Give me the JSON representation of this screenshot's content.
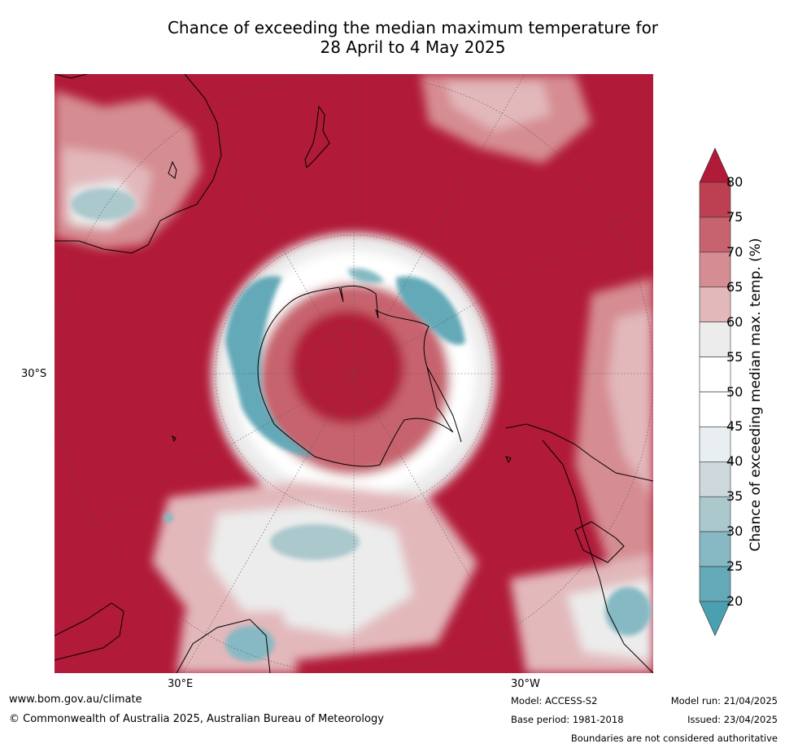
{
  "title": {
    "line1": "Chance of exceeding the median maximum temperature for",
    "line2": "28 April to 4 May 2025"
  },
  "axis_labels": {
    "left": "30°S",
    "bottom_left": "30°E",
    "bottom_right": "30°W"
  },
  "colorbar": {
    "title": "Chance of exceeding median max. temp. (%)",
    "ticks": [
      "80",
      "75",
      "70",
      "65",
      "60",
      "55",
      "50",
      "45",
      "40",
      "35",
      "30",
      "25",
      "20"
    ],
    "colors": {
      "above_80": "#b11a38",
      "75_80": "#bd3f52",
      "70_75": "#c7636e",
      "65_70": "#d58c92",
      "60_65": "#e2b8bb",
      "55_60": "#ececec",
      "50_55": "#ffffff",
      "45_50": "#ffffff",
      "40_45": "#e9eff1",
      "35_40": "#ced8dc",
      "30_35": "#abc8cd",
      "25_30": "#86b9c3",
      "20_25": "#64a9b7",
      "below_20": "#4a9fb0"
    }
  },
  "footer": {
    "website": "www.bom.gov.au/climate",
    "copyright": "© Commonwealth of Australia 2025, Australian Bureau of Meteorology",
    "model": "Model: ACCESS-S2",
    "base_period": "Base period: 1981-2018",
    "model_run": "Model run: 21/04/2025",
    "issued": "Issued: 23/04/2025",
    "disclaimer": "Boundaries are not considered authoritative"
  }
}
